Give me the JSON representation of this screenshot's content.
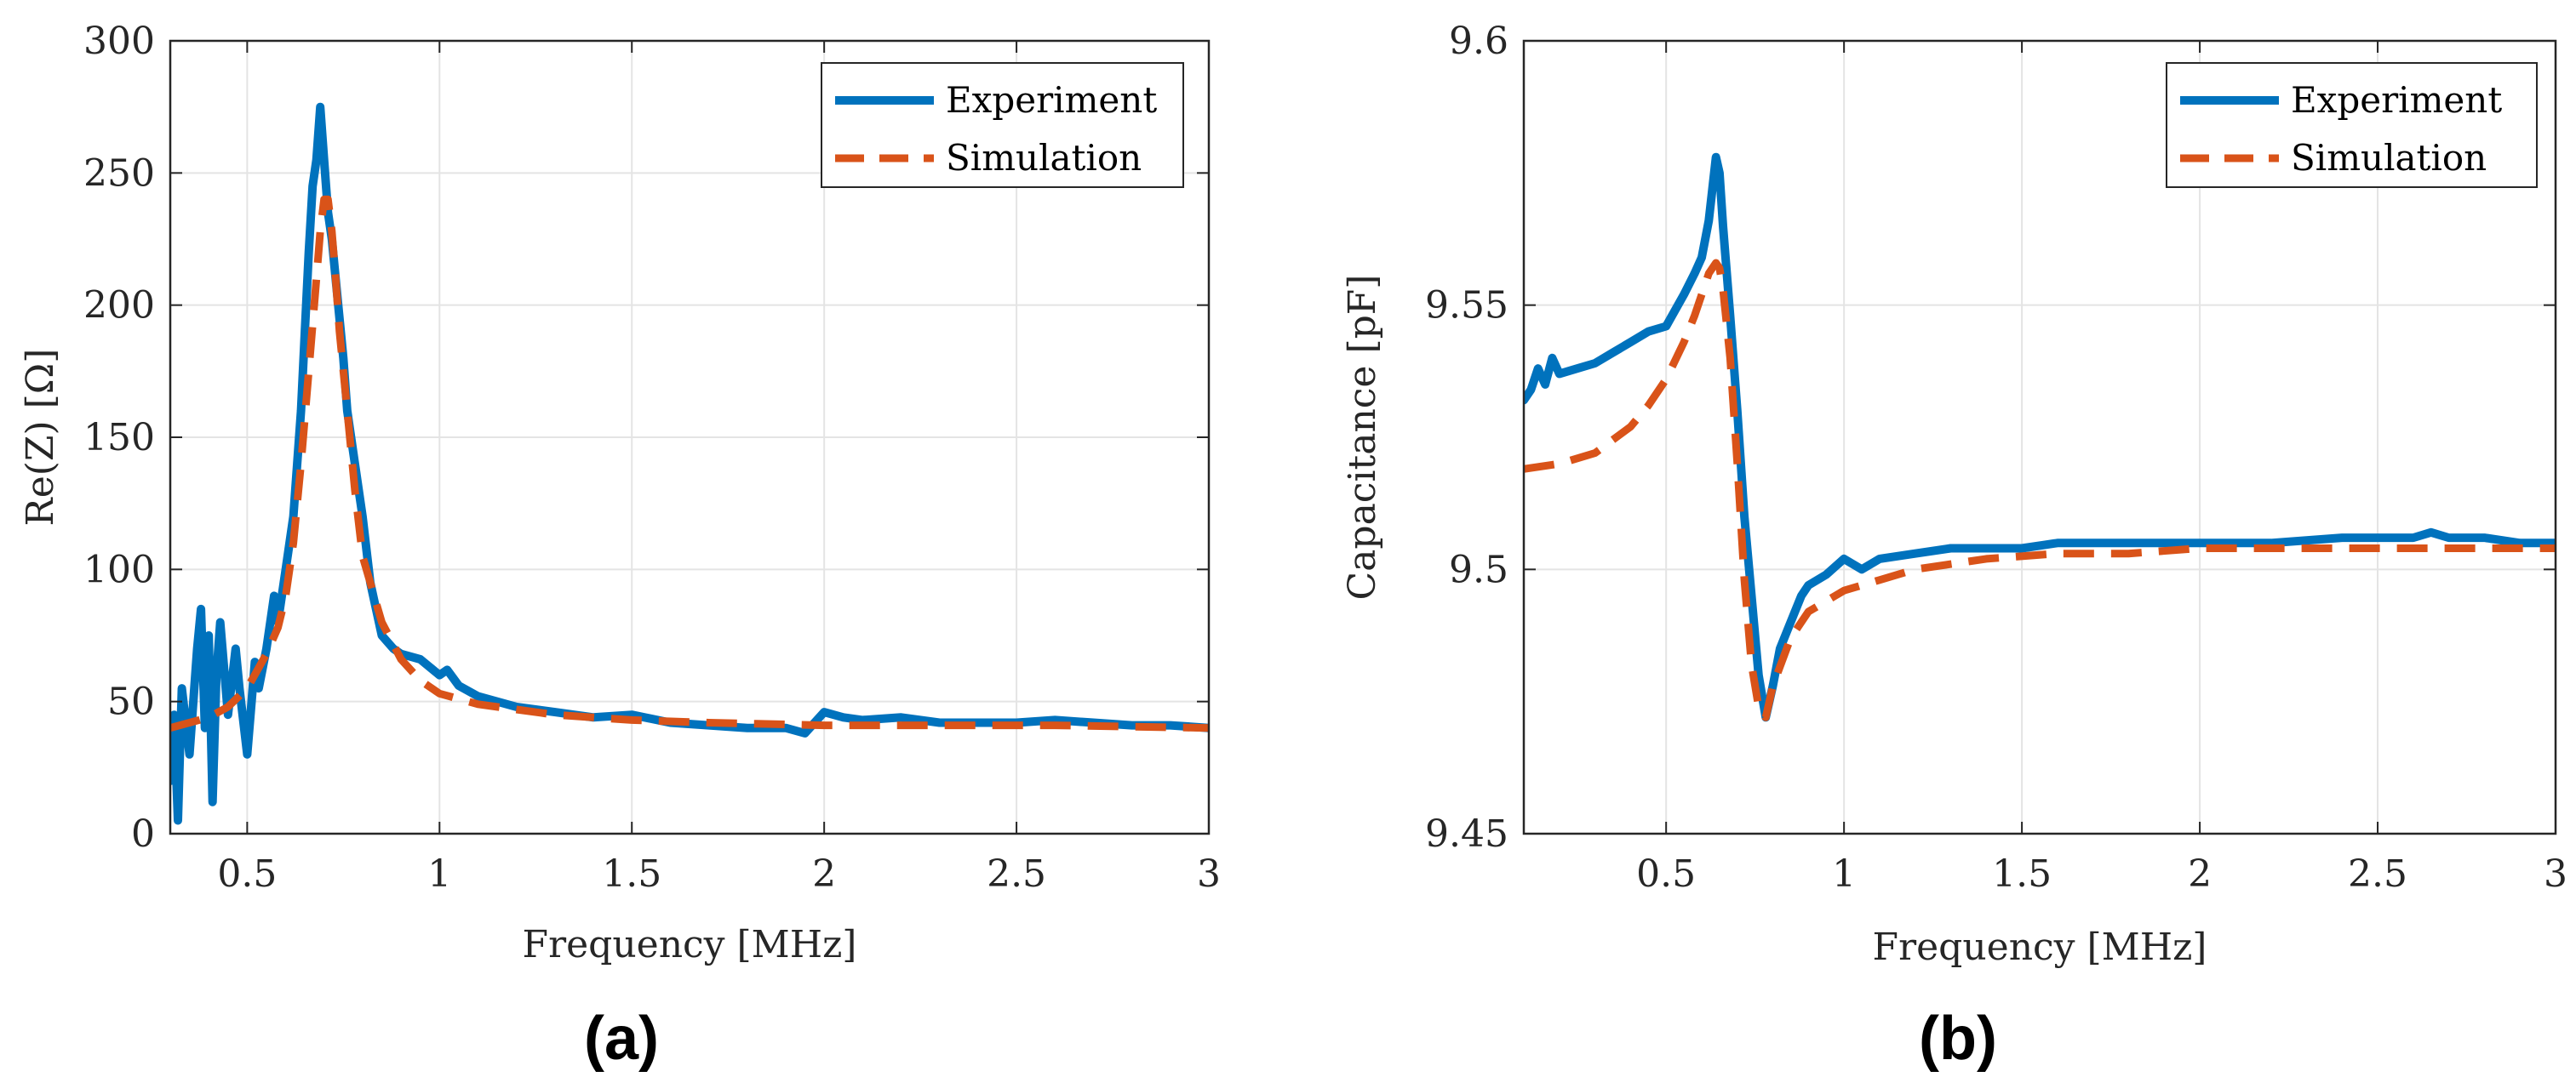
{
  "panels": [
    {
      "label": "(a)",
      "chart_data": {
        "type": "line",
        "title": "",
        "xlabel": "Frequency [MHz]",
        "ylabel": "Re(Z) [Ω]",
        "xlim": [
          0.3,
          3.0
        ],
        "ylim": [
          0,
          300
        ],
        "xticks": [
          0.5,
          1,
          1.5,
          2,
          2.5,
          3
        ],
        "xtick_labels": [
          "0.5",
          "1",
          "1.5",
          "2",
          "2.5",
          "3"
        ],
        "yticks": [
          0,
          50,
          100,
          150,
          200,
          250,
          300
        ],
        "ytick_labels": [
          "0",
          "50",
          "100",
          "150",
          "200",
          "250",
          "300"
        ],
        "grid": true,
        "legend": "top-right",
        "series": [
          {
            "name": "Experiment",
            "style": "solid",
            "color": "#0072BD",
            "x": [
              0.3,
              0.31,
              0.32,
              0.33,
              0.35,
              0.37,
              0.38,
              0.39,
              0.4,
              0.41,
              0.42,
              0.43,
              0.45,
              0.47,
              0.48,
              0.5,
              0.52,
              0.53,
              0.55,
              0.57,
              0.58,
              0.6,
              0.62,
              0.63,
              0.64,
              0.65,
              0.66,
              0.67,
              0.68,
              0.69,
              0.7,
              0.71,
              0.72,
              0.73,
              0.74,
              0.75,
              0.76,
              0.78,
              0.8,
              0.82,
              0.85,
              0.88,
              0.9,
              0.95,
              1.0,
              1.02,
              1.05,
              1.1,
              1.15,
              1.2,
              1.3,
              1.4,
              1.5,
              1.6,
              1.7,
              1.8,
              1.9,
              1.95,
              2.0,
              2.05,
              2.1,
              2.2,
              2.3,
              2.4,
              2.5,
              2.6,
              2.7,
              2.8,
              2.9,
              3.0
            ],
            "y": [
              20,
              45,
              5,
              55,
              30,
              70,
              85,
              40,
              75,
              12,
              60,
              80,
              45,
              70,
              55,
              30,
              65,
              55,
              70,
              90,
              80,
              100,
              120,
              140,
              160,
              190,
              220,
              245,
              255,
              275,
              255,
              235,
              225,
              210,
              195,
              180,
              160,
              140,
              120,
              95,
              75,
              70,
              68,
              66,
              60,
              62,
              56,
              52,
              50,
              48,
              46,
              44,
              45,
              42,
              41,
              40,
              40,
              38,
              46,
              44,
              43,
              44,
              42,
              42,
              42,
              43,
              42,
              41,
              41,
              40
            ]
          },
          {
            "name": "Simulation",
            "style": "dashed",
            "color": "#D95319",
            "x": [
              0.3,
              0.35,
              0.4,
              0.45,
              0.5,
              0.55,
              0.58,
              0.6,
              0.62,
              0.64,
              0.66,
              0.68,
              0.69,
              0.7,
              0.71,
              0.72,
              0.73,
              0.74,
              0.76,
              0.78,
              0.8,
              0.85,
              0.9,
              0.95,
              1.0,
              1.1,
              1.2,
              1.3,
              1.5,
              1.7,
              2.0,
              2.3,
              2.6,
              3.0
            ],
            "y": [
              40,
              42,
              44,
              48,
              55,
              68,
              78,
              90,
              110,
              140,
              175,
              210,
              228,
              240,
              240,
              228,
              210,
              190,
              160,
              130,
              105,
              80,
              66,
              58,
              53,
              49,
              47,
              45,
              43,
              42,
              41,
              41,
              41,
              40
            ]
          }
        ]
      }
    },
    {
      "label": "(b)",
      "chart_data": {
        "type": "line",
        "title": "",
        "xlabel": "Frequency [MHz]",
        "ylabel": "Capacitance [pF]",
        "xlim": [
          0.1,
          3.0
        ],
        "ylim": [
          9.45,
          9.6
        ],
        "xticks": [
          0.5,
          1,
          1.5,
          2,
          2.5,
          3
        ],
        "xtick_labels": [
          "0.5",
          "1",
          "1.5",
          "2",
          "2.5",
          "3"
        ],
        "yticks": [
          9.45,
          9.5,
          9.55,
          9.6
        ],
        "ytick_labels": [
          "9.45",
          "9.5",
          "9.55",
          "9.6"
        ],
        "grid": true,
        "legend": "top-right",
        "series": [
          {
            "name": "Experiment",
            "style": "solid",
            "color": "#0072BD",
            "x": [
              0.1,
              0.12,
              0.14,
              0.16,
              0.18,
              0.2,
              0.25,
              0.3,
              0.35,
              0.4,
              0.45,
              0.5,
              0.55,
              0.58,
              0.6,
              0.62,
              0.63,
              0.64,
              0.65,
              0.66,
              0.68,
              0.7,
              0.72,
              0.74,
              0.76,
              0.78,
              0.8,
              0.82,
              0.85,
              0.88,
              0.9,
              0.95,
              1.0,
              1.05,
              1.1,
              1.2,
              1.3,
              1.4,
              1.5,
              1.6,
              1.8,
              2.0,
              2.2,
              2.4,
              2.6,
              2.65,
              2.7,
              2.8,
              2.9,
              3.0
            ],
            "y": [
              9.532,
              9.534,
              9.538,
              9.535,
              9.54,
              9.537,
              9.538,
              9.539,
              9.541,
              9.543,
              9.545,
              9.546,
              9.552,
              9.556,
              9.559,
              9.566,
              9.572,
              9.578,
              9.575,
              9.565,
              9.548,
              9.53,
              9.51,
              9.495,
              9.48,
              9.472,
              9.478,
              9.485,
              9.49,
              9.495,
              9.497,
              9.499,
              9.502,
              9.5,
              9.502,
              9.503,
              9.504,
              9.504,
              9.504,
              9.505,
              9.505,
              9.505,
              9.505,
              9.506,
              9.506,
              9.507,
              9.506,
              9.506,
              9.505,
              9.505
            ]
          },
          {
            "name": "Simulation",
            "style": "dashed",
            "color": "#D95319",
            "x": [
              0.1,
              0.2,
              0.3,
              0.4,
              0.45,
              0.5,
              0.55,
              0.58,
              0.6,
              0.62,
              0.64,
              0.65,
              0.66,
              0.68,
              0.7,
              0.72,
              0.74,
              0.76,
              0.78,
              0.8,
              0.85,
              0.9,
              1.0,
              1.1,
              1.2,
              1.4,
              1.6,
              1.8,
              2.0,
              2.5,
              3.0
            ],
            "y": [
              9.519,
              9.52,
              9.522,
              9.527,
              9.531,
              9.536,
              9.543,
              9.548,
              9.552,
              9.556,
              9.558,
              9.557,
              9.553,
              9.54,
              9.52,
              9.498,
              9.482,
              9.474,
              9.472,
              9.478,
              9.487,
              9.492,
              9.496,
              9.498,
              9.5,
              9.502,
              9.503,
              9.503,
              9.504,
              9.504,
              9.504
            ]
          }
        ]
      }
    }
  ]
}
